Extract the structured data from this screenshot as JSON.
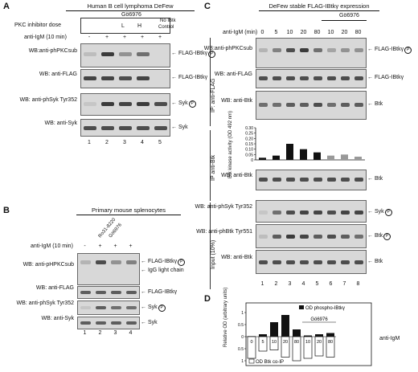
{
  "panelA": {
    "label": "A",
    "title": "Human B cell lymphoma DeFew",
    "row_pkc": "PKC inhibitor dose",
    "row_igm": "anti-IgM (10 min)",
    "drug": "Gö6976",
    "dose_L": "L",
    "dose_H": "H",
    "no_btk": "No IBtk",
    "control": "Control",
    "signs": [
      "-",
      "+",
      "+",
      "+",
      "+"
    ],
    "blots": [
      {
        "label": "WB:anti-phPKCsub",
        "arrow": "FLAG-IBtkγ",
        "phospho": true
      },
      {
        "label": "WB: anti-FLAG",
        "arrow": "FLAG-IBtkγ",
        "phospho": false
      },
      {
        "label": "WB: anti-phSyk Tyr352",
        "arrow": "Syk",
        "phospho": true
      },
      {
        "label": "WB: anti-Syk",
        "arrow": "Syk",
        "phospho": false
      }
    ],
    "lanes": [
      "1",
      "2",
      "3",
      "4",
      "5"
    ]
  },
  "panelB": {
    "label": "B",
    "title": "Primary mouse splenocytes",
    "row_igm": "anti-IgM (10 min)",
    "drug1": "Ro31-8220",
    "drug2": "Gö6976",
    "signs": [
      "-",
      "+",
      "+",
      "+"
    ],
    "blots": [
      {
        "label": "WB: anti-pHPKCsub",
        "arrow": "FLAG-IBtkγ",
        "arrow2": "IgG light chain",
        "phospho": true
      },
      {
        "label": "WB: anti-FLAG",
        "arrow": "FLAG-IBtkγ",
        "phospho": false
      },
      {
        "label": "WB: anti-phSyk Tyr352",
        "arrow": "Syk",
        "phospho": true
      },
      {
        "label": "WB: anti-Syk",
        "arrow": "Syk",
        "phospho": false
      }
    ],
    "lanes": [
      "1",
      "2",
      "3",
      "4"
    ]
  },
  "panelC": {
    "label": "C",
    "title": "DeFew stable FLAG-IBtkγ expression",
    "drug": "Gö6976",
    "row_igm": "anti-IgM (min)",
    "times": [
      "0",
      "5",
      "10",
      "20",
      "80",
      "10",
      "20",
      "80"
    ],
    "section_ip_flag": "IP: anti-FLAG",
    "section_ip_btk": "IP anti-Btk",
    "section_input": "Input (10%)",
    "blots": [
      {
        "label": "WB:anti-phPKCsub",
        "arrow": "FLAG-IBtkγ",
        "phospho": true
      },
      {
        "label": "WB: anti-FLAG",
        "arrow": "FLAG-IBtkγ",
        "phospho": false
      },
      {
        "label": "WB: anti-Btk",
        "arrow": "Btk",
        "phospho": false
      },
      {
        "label": "WB: anti-Btk",
        "arrow": "Btk",
        "phospho": false
      },
      {
        "label": "WB: anti-phSyk Tyr352",
        "arrow": "Syk",
        "phospho": true
      },
      {
        "label": "WB: anti-phBtk Tyr551",
        "arrow": "Btk",
        "phospho": true
      },
      {
        "label": "WB: anti-Btk",
        "arrow": "Btk",
        "phospho": false
      }
    ],
    "lanes": [
      "1",
      "2",
      "3",
      "4",
      "5",
      "6",
      "7",
      "8"
    ],
    "kinase_ylabel": "Btk kinase activity (OD 492 nm)",
    "kinase_ticks": [
      "0.30",
      "0.25",
      "0.20",
      "0.15",
      "0.10",
      "0.05",
      "0"
    ]
  },
  "panelD": {
    "label": "D",
    "drug": "Gö6976",
    "ylabel": "Relative OD (arbitrary units)",
    "legend_top": "OD phospho-IBtkγ",
    "legend_bottom": "OD Btk co-IP",
    "row_igm": "anti-IgM",
    "times": [
      "0",
      "5",
      "10",
      "20",
      "80",
      "10",
      "20",
      "80"
    ],
    "yticks_top": [
      "1",
      "0.5",
      "0"
    ],
    "yticks_bottom": [
      "0.5",
      "1"
    ]
  },
  "chart_data": [
    {
      "type": "bar",
      "title": "",
      "ylabel": "Btk kinase activity (OD 492 nm)",
      "categories": [
        "1",
        "2",
        "3",
        "4",
        "5",
        "6",
        "7",
        "8"
      ],
      "values": [
        0.02,
        0.04,
        0.15,
        0.1,
        0.07,
        0.04,
        0.05,
        0.03
      ],
      "colors": [
        "#111111",
        "#111111",
        "#111111",
        "#111111",
        "#111111",
        "#999999",
        "#999999",
        "#999999"
      ],
      "ylim": [
        0,
        0.3
      ]
    },
    {
      "type": "bar",
      "title": "",
      "ylabel": "Relative OD (arbitrary units)",
      "categories": [
        "0",
        "5",
        "10",
        "20",
        "80",
        "10",
        "20",
        "80"
      ],
      "series": [
        {
          "name": "OD phospho-IBtkγ",
          "values": [
            0.02,
            0.1,
            0.6,
            0.9,
            0.3,
            0.05,
            0.1,
            0.15
          ]
        },
        {
          "name": "OD Btk co-IP",
          "values": [
            0.9,
            0.6,
            0.55,
            0.85,
            1.0,
            0.9,
            0.8,
            0.85
          ]
        }
      ],
      "ylim": [
        -1.2,
        1.2
      ]
    }
  ]
}
